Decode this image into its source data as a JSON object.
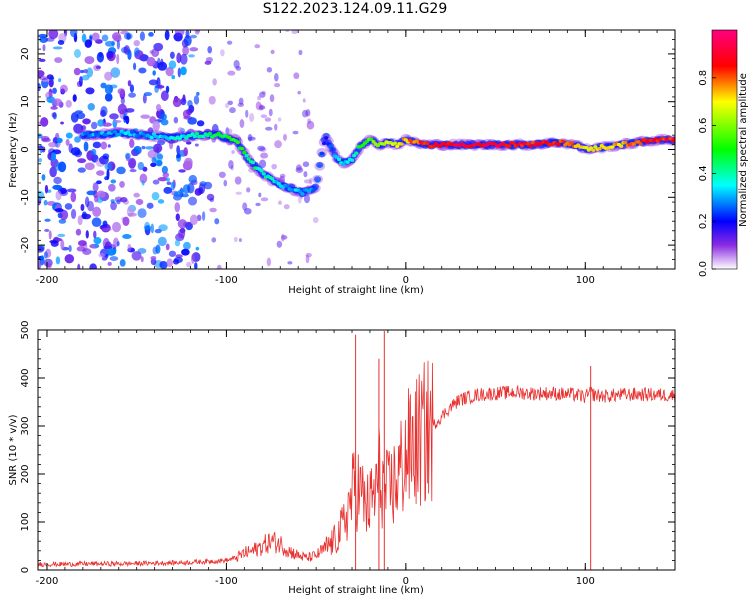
{
  "title": "S122.2023.124.09.11.G29",
  "chart_data": [
    {
      "type": "heatmap",
      "xlabel": "Height of straight line (km)",
      "ylabel": "Frequency (Hz)",
      "xlim": [
        -205,
        150
      ],
      "ylim": [
        -25,
        25
      ],
      "xticks": [
        -200,
        -100,
        0,
        100
      ],
      "yticks": [
        -20,
        -10,
        0,
        10,
        20
      ],
      "grid": false,
      "colorbar": {
        "label": "Normalized spectral amplitude",
        "range": [
          0.0,
          1.0
        ],
        "ticks": [
          0.0,
          0.2,
          0.4,
          0.6,
          0.8
        ],
        "colormap": [
          "#ffffff",
          "#7a00ff",
          "#0000ff",
          "#00ffff",
          "#00ff00",
          "#ffff00",
          "#ff0000",
          "#ff0080"
        ]
      },
      "ridge": {
        "x": [
          -175,
          -160,
          -145,
          -130,
          -115,
          -105,
          -95,
          -88,
          -80,
          -72,
          -65,
          -58,
          -50,
          -45,
          -40,
          -35,
          -30,
          -25,
          -20,
          -15,
          -10,
          -5,
          0,
          10,
          30,
          50,
          70,
          85,
          95,
          100,
          110,
          120,
          130,
          140,
          150
        ],
        "y": [
          3,
          3.5,
          3,
          2.5,
          3,
          3,
          2,
          -2,
          -5,
          -7,
          -8,
          -9,
          -8,
          3,
          -1,
          -3,
          -2,
          1,
          2,
          1,
          1.5,
          1,
          2,
          1,
          1,
          1,
          1,
          1.5,
          1,
          0,
          0.5,
          1,
          1.5,
          2,
          2
        ],
        "amplitude": [
          0.3,
          0.3,
          0.3,
          0.35,
          0.4,
          0.45,
          0.5,
          0.45,
          0.4,
          0.35,
          0.3,
          0.3,
          0.25,
          0.2,
          0.3,
          0.35,
          0.35,
          0.5,
          0.55,
          0.6,
          0.65,
          0.7,
          0.75,
          0.85,
          0.9,
          0.9,
          0.85,
          0.85,
          0.75,
          0.7,
          0.7,
          0.75,
          0.8,
          0.85,
          0.85
        ]
      }
    },
    {
      "type": "line",
      "xlabel": "Height of straight line (km)",
      "ylabel": "SNR (10 * v/v)",
      "xlim": [
        -205,
        150
      ],
      "ylim": [
        0,
        500
      ],
      "xticks": [
        -200,
        -100,
        0,
        100
      ],
      "yticks": [
        0,
        100,
        200,
        300,
        400,
        500
      ],
      "grid": false,
      "color": "#e8312f",
      "series": [
        {
          "x": [
            -205,
            -190,
            -175,
            -160,
            -145,
            -130,
            -120,
            -110,
            -100,
            -95,
            -90,
            -85,
            -80,
            -75,
            -70,
            -65,
            -60,
            -55,
            -50,
            -45,
            -40,
            -35,
            -32,
            -28,
            -25,
            -22,
            -18,
            -15,
            -12,
            -10,
            -5,
            0,
            5,
            10,
            15,
            20,
            25,
            30,
            35,
            40,
            50,
            60,
            70,
            80,
            90,
            95,
            100,
            103,
            105,
            110,
            120,
            130,
            140,
            150
          ],
          "y": [
            12,
            12,
            13,
            13,
            14,
            15,
            16,
            18,
            20,
            25,
            35,
            40,
            50,
            60,
            55,
            40,
            30,
            25,
            30,
            45,
            60,
            90,
            130,
            180,
            160,
            130,
            150,
            200,
            170,
            160,
            190,
            240,
            260,
            280,
            300,
            320,
            340,
            355,
            360,
            365,
            368,
            370,
            368,
            368,
            366,
            365,
            360,
            370,
            365,
            362,
            365,
            366,
            365,
            364
          ]
        }
      ],
      "spikes": [
        {
          "x": -28,
          "y": 490
        },
        {
          "x": -12,
          "y": 498
        },
        {
          "x": -15,
          "y": 440
        },
        {
          "x": 103,
          "y": 425
        }
      ]
    }
  ]
}
